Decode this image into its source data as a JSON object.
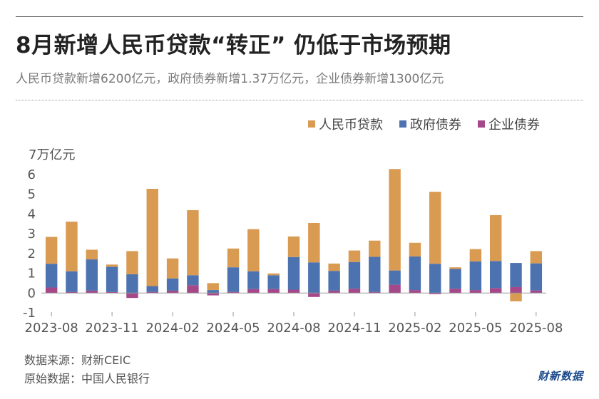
{
  "title": "8月新增人民币贷款“转正” 仍低于市场预期",
  "subtitle": "人民币贷款新增6200亿元，政府债券新增1.37万亿元，企业债券新增1300亿元",
  "footer": {
    "source": "数据来源：财新CEIC",
    "original": "原始数据：中国人民银行"
  },
  "logo": "财新数据",
  "colors": {
    "loans": "#d99a52",
    "gov_bonds": "#4c72b0",
    "corp_bonds": "#a5488a"
  },
  "chart_data": {
    "type": "bar",
    "stacked": true,
    "y_unit_label": "7万亿元",
    "ylim": [
      -1,
      7
    ],
    "y_ticks": [
      -1,
      0,
      1,
      2,
      3,
      4,
      5,
      6
    ],
    "grid": false,
    "legend_position": "top-right",
    "categories": [
      "2023-08",
      "2023-09",
      "2023-10",
      "2023-11",
      "2023-12",
      "2024-01",
      "2024-02",
      "2024-03",
      "2024-04",
      "2024-05",
      "2024-06",
      "2024-07",
      "2024-08",
      "2024-09",
      "2024-10",
      "2024-11",
      "2024-12",
      "2025-01",
      "2025-02",
      "2025-03",
      "2025-04",
      "2025-05",
      "2025-06",
      "2025-07",
      "2025-08"
    ],
    "x_tick_labels": [
      "2023-08",
      "2023-11",
      "2024-02",
      "2024-05",
      "2024-08",
      "2024-11",
      "2025-02",
      "2025-05",
      "2025-08"
    ],
    "x_tick_indices": [
      0,
      3,
      6,
      9,
      12,
      15,
      18,
      21,
      24
    ],
    "series": [
      {
        "name": "企业债券",
        "color_key": "corp_bonds",
        "values": [
          0.28,
          0.05,
          0.12,
          0.05,
          -0.25,
          0.05,
          0.12,
          0.4,
          -0.12,
          0.05,
          0.2,
          0.2,
          0.17,
          -0.2,
          0.12,
          0.22,
          0.05,
          0.42,
          0.15,
          -0.06,
          0.22,
          0.15,
          0.25,
          0.3,
          0.13
        ]
      },
      {
        "name": "政府债券",
        "color_key": "gov_bonds",
        "values": [
          1.2,
          1.05,
          1.58,
          1.28,
          0.95,
          0.3,
          0.62,
          0.5,
          0.15,
          1.25,
          0.9,
          0.7,
          1.65,
          1.55,
          1.0,
          1.35,
          1.78,
          0.72,
          1.7,
          1.48,
          1.0,
          1.45,
          1.37,
          1.22,
          1.37
        ]
      },
      {
        "name": "人民币贷款",
        "color_key": "loans",
        "values": [
          1.36,
          2.51,
          0.49,
          0.11,
          1.17,
          4.92,
          1.01,
          3.29,
          0.35,
          0.95,
          2.13,
          0.09,
          1.04,
          1.99,
          0.37,
          0.58,
          0.82,
          5.13,
          0.69,
          3.64,
          0.08,
          0.62,
          2.32,
          -0.42,
          0.62
        ]
      }
    ]
  }
}
